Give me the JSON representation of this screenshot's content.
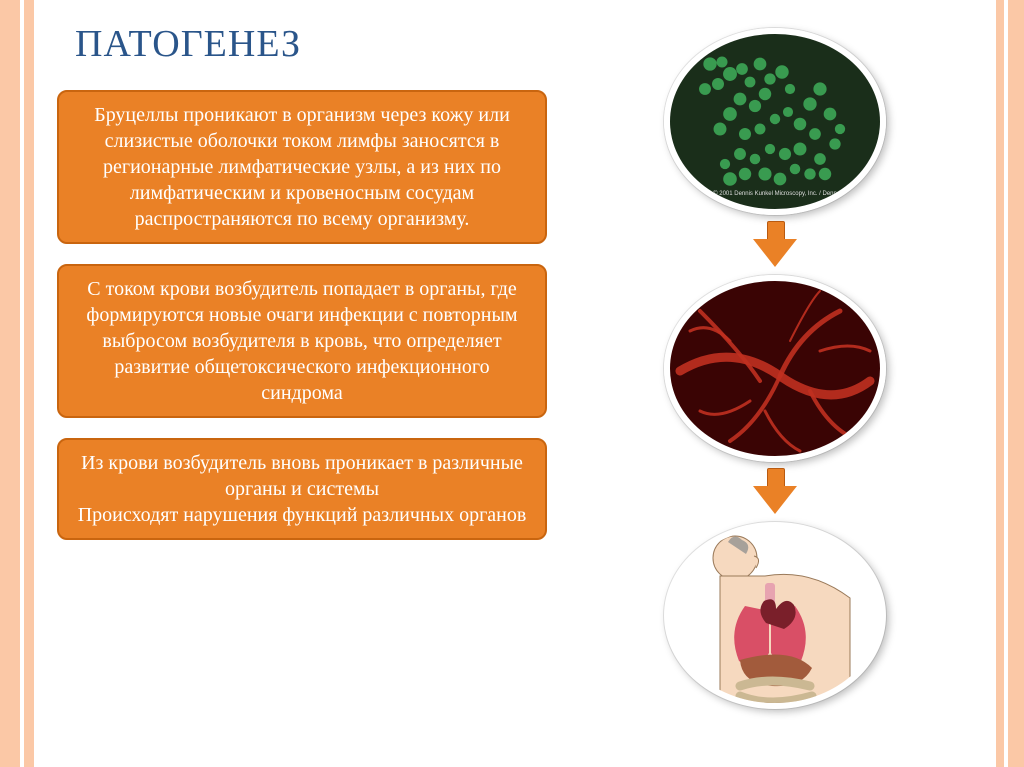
{
  "title": "ПАТОГЕНЕЗ",
  "title_color": "#2a558a",
  "accent_bar_color": "#fbc8a6",
  "boxes": [
    {
      "text": "Бруцеллы проникают в организм через кожу или слизистые оболочки током лимфы заносятся в регионарные лимфатические узлы, а из них по лимфатическим и кровеносным сосудам распространяются по всему организму.",
      "bg": "#ea8126",
      "border": "#c9650f",
      "color": "#ffffff"
    },
    {
      "text": "С током крови возбудитель попадает в органы, где формируются новые очаги инфекции с повторным выбросом возбудителя в кровь, что определяет развитие общетоксического инфекционного синдрома",
      "bg": "#ea8126",
      "border": "#c9650f",
      "color": "#ffffff"
    },
    {
      "text": "Из крови возбудитель вновь проникает в различные органы и системы\nПроисходят нарушения функций различных органов",
      "bg": "#ea8126",
      "border": "#c9650f",
      "color": "#ffffff"
    }
  ],
  "arrow_color": "#ea8126",
  "arrow_border": "#b95a10",
  "circles": [
    {
      "name": "bacteria-image",
      "type": "bacteria",
      "bg": "#1a2e1a",
      "dot_color": "#3fae5a",
      "caption": "© 2001 Dennis Kunkel Microscopy, Inc. / Denn"
    },
    {
      "name": "blood-vessels-image",
      "type": "vessels",
      "bg": "#3a0404",
      "line_color": "#c03020"
    },
    {
      "name": "organs-image",
      "type": "organs",
      "bg": "#ffffff"
    }
  ]
}
